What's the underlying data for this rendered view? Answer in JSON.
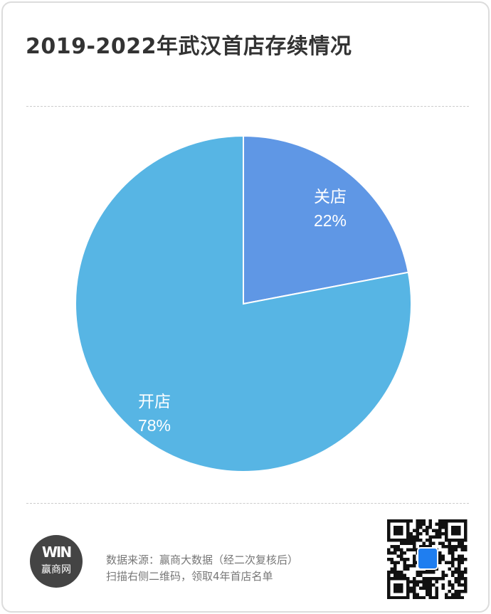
{
  "title": "2019-2022年武汉首店存续情况",
  "chart_data": {
    "type": "pie",
    "title": "2019-2022年武汉首店存续情况",
    "slices": [
      {
        "label": "关店",
        "value": 22,
        "value_label": "22%",
        "color": "#5f97e5"
      },
      {
        "label": "开店",
        "value": 78,
        "value_label": "78%",
        "color": "#57b5e4"
      }
    ]
  },
  "footer": {
    "logo_mark": "WIN",
    "logo_name": "赢商网",
    "source_line": "数据来源：赢商大数据（经二次复核后）",
    "cta_line": "扫描右侧二维码，领取4年首店名单"
  }
}
